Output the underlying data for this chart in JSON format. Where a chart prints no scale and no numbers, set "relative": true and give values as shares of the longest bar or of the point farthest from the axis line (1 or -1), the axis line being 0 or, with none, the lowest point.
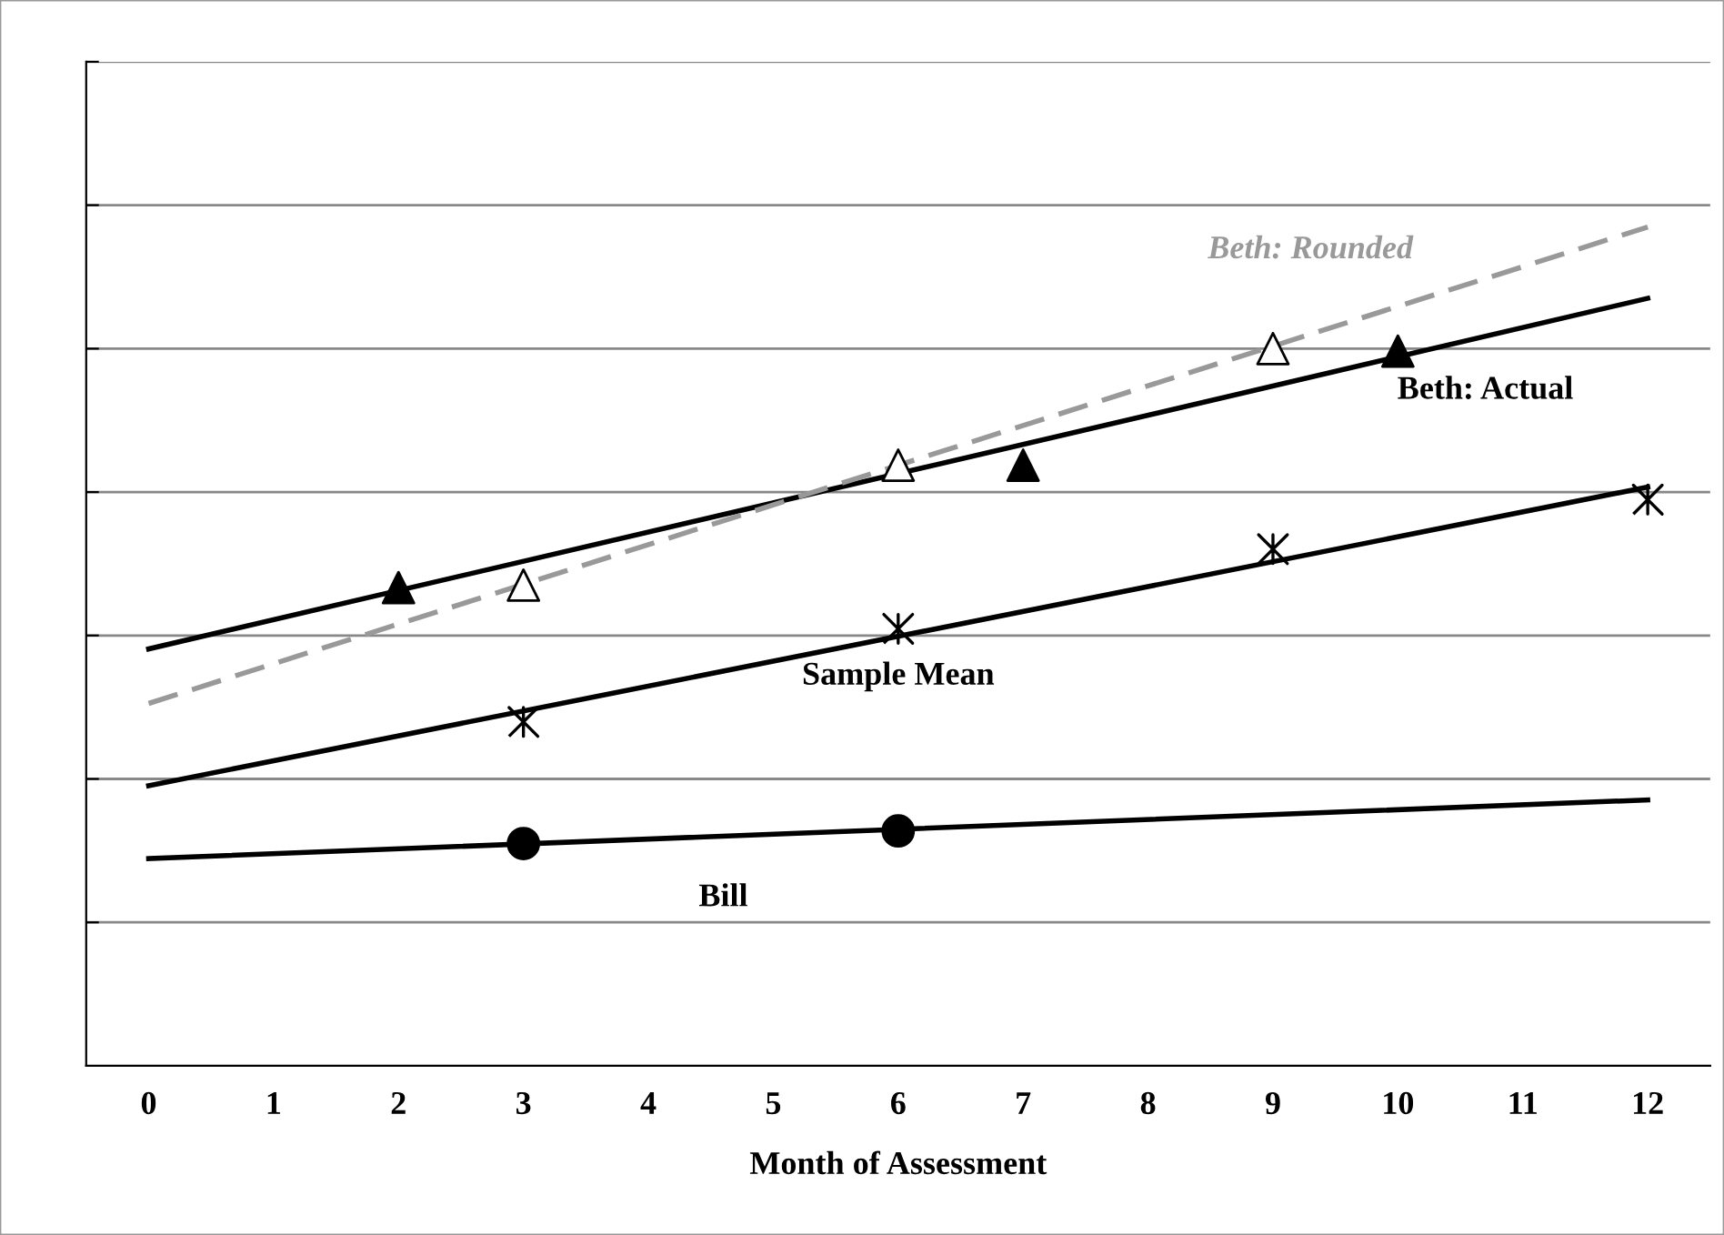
{
  "chart_data": {
    "type": "line",
    "relative": true,
    "xlabel": "Month of Assessment",
    "xlim": [
      -0.5,
      12.5
    ],
    "xticks": [
      0,
      1,
      2,
      3,
      4,
      5,
      6,
      7,
      8,
      9,
      10,
      11,
      12
    ],
    "grid": "y",
    "tick_labels": "x",
    "series": [
      {
        "name": "Bill",
        "color": "#000000",
        "line_style": "solid",
        "x": [
          0,
          12
        ],
        "values": [
          0.247,
          0.317
        ]
      },
      {
        "type": "scatter",
        "color": "#000000",
        "marker": "circle",
        "x": [
          3,
          6
        ],
        "values": [
          0.265,
          0.28
        ]
      },
      {
        "name": "Sample Mean",
        "color": "#000000",
        "line_style": "solid",
        "x": [
          0,
          12
        ],
        "values": [
          0.334,
          0.69
        ]
      },
      {
        "type": "scatter",
        "color": "#000000",
        "marker": "cross",
        "x": [
          3,
          6,
          9,
          12
        ],
        "values": [
          0.41,
          0.521,
          0.616,
          0.675
        ]
      },
      {
        "name": "Beth: Actual",
        "color": "#000000",
        "line_style": "solid",
        "x": [
          0,
          12
        ],
        "values": [
          0.497,
          0.915
        ]
      },
      {
        "type": "scatter",
        "color": "#000000",
        "marker": "triangle",
        "x": [
          2,
          7,
          10
        ],
        "values": [
          0.57,
          0.716,
          0.852
        ]
      },
      {
        "name": "Beth: Rounded",
        "color": "#999999",
        "line_style": "dashed",
        "x": [
          0,
          12
        ],
        "values": [
          0.432,
          1.0
        ]
      },
      {
        "type": "scatter",
        "color": "#ffffff",
        "marker": "triangle",
        "x": [
          3,
          6,
          9
        ],
        "values": [
          0.573,
          0.716,
          0.855
        ]
      }
    ]
  }
}
